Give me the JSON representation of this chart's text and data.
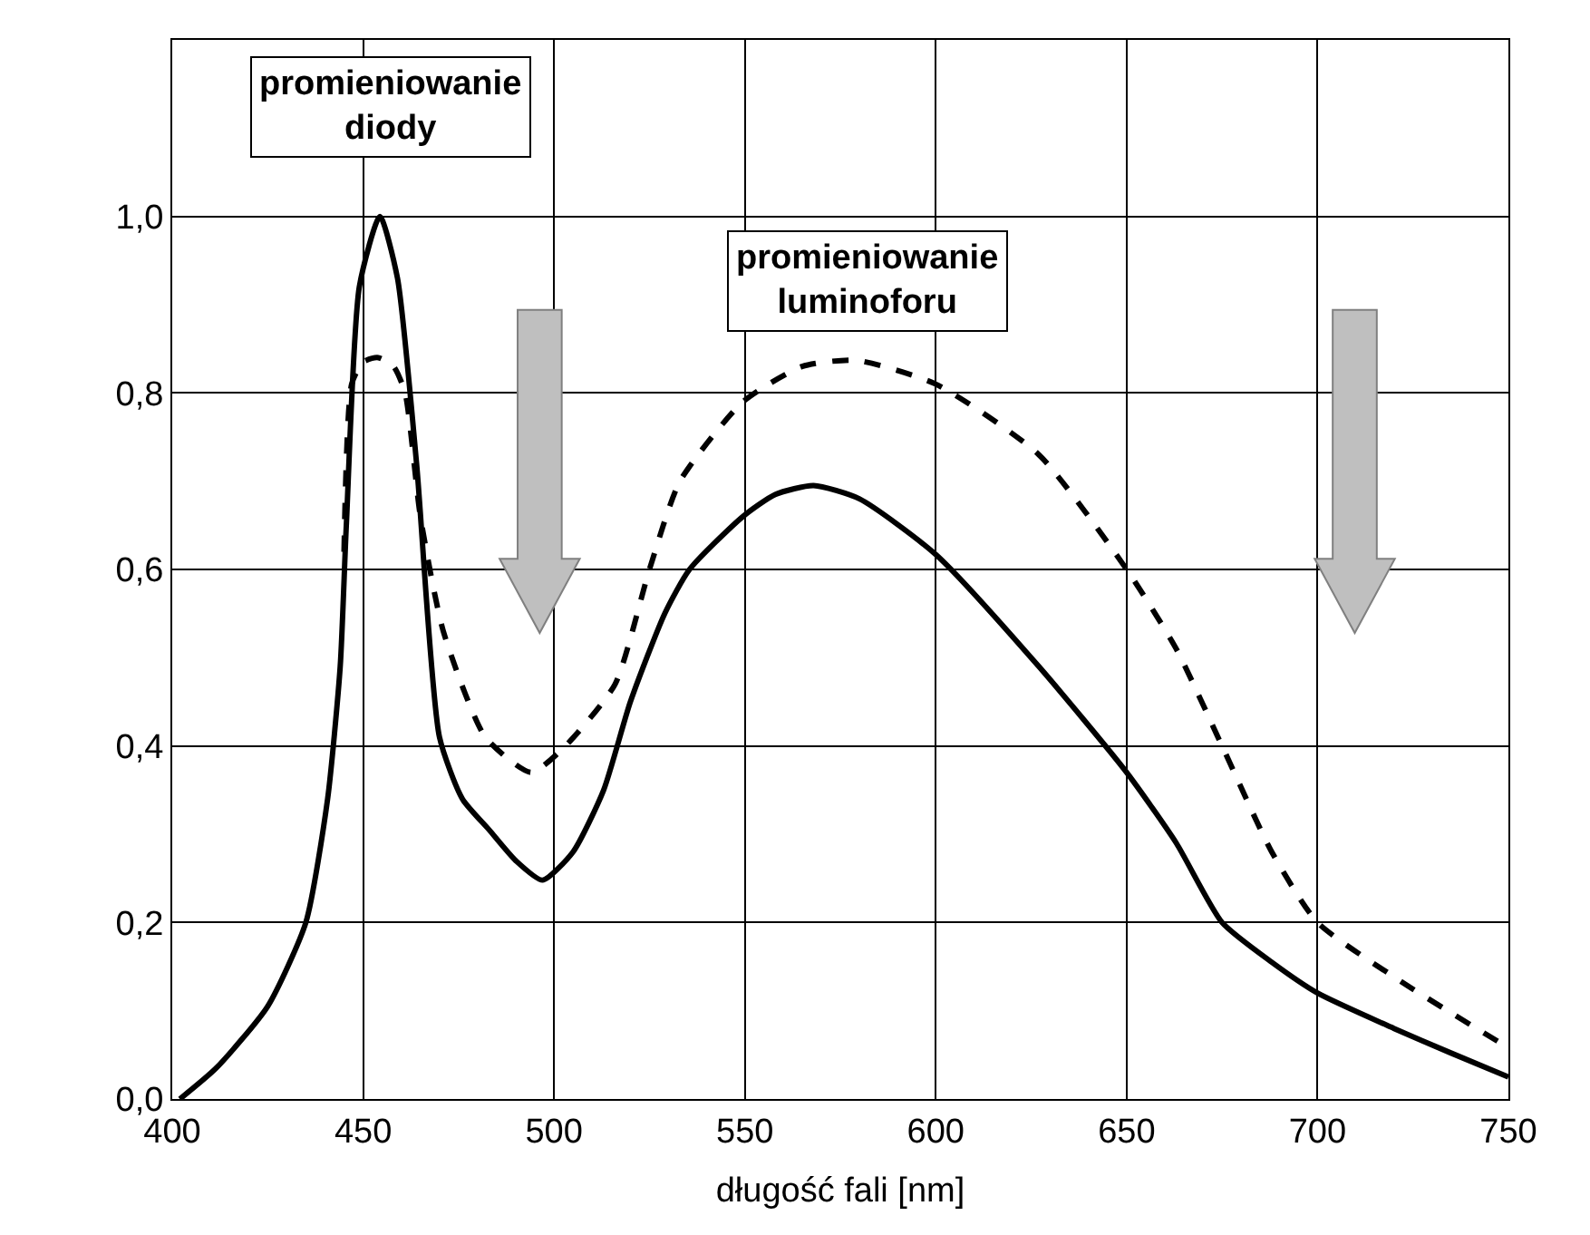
{
  "chart_data": {
    "type": "line",
    "xlabel": "długość fali [nm]",
    "xlim": [
      400,
      750
    ],
    "xticks": [
      400,
      450,
      500,
      550,
      600,
      650,
      700,
      750
    ],
    "ylim": [
      0,
      1.2
    ],
    "yticks": [
      {
        "value": 0,
        "label": "0,0"
      },
      {
        "value": 0.2,
        "label": "0,2"
      },
      {
        "value": 0.4,
        "label": "0,4"
      },
      {
        "value": 0.6,
        "label": "0,6"
      },
      {
        "value": 0.8,
        "label": "0,8"
      },
      {
        "value": 1.0,
        "label": "1,0"
      },
      {
        "value": 1.2,
        "label": null
      }
    ],
    "grid": true,
    "marker": "none",
    "annotations": [
      "promieniowanie\ndiody",
      "promieniowanie\nluminoforu"
    ],
    "series": [
      {
        "color": "#000000",
        "line_style": "solid",
        "x": [
          402,
          411.5,
          425,
          435,
          440.7,
          444,
          445.6,
          449,
          454.4,
          459,
          464,
          470,
          476,
          483,
          490,
          497,
          505,
          513,
          520,
          529,
          535.5,
          549.5,
          558,
          568,
          580,
          600,
          627,
          650,
          663,
          675,
          688,
          700,
          720,
          735,
          750
        ],
        "values": [
          0,
          0.035,
          0.105,
          0.2,
          0.34,
          0.49,
          0.65,
          0.92,
          1.0,
          0.93,
          0.72,
          0.41,
          0.34,
          0.305,
          0.27,
          0.248,
          0.28,
          0.35,
          0.45,
          0.55,
          0.6,
          0.66,
          0.685,
          0.695,
          0.68,
          0.617,
          0.49,
          0.37,
          0.29,
          0.2,
          0.155,
          0.12,
          0.08,
          0.052,
          0.025
        ]
      },
      {
        "color": "#000000",
        "line_style": "dashed",
        "x": [
          445,
          447,
          450,
          454,
          458,
          461,
          465,
          471,
          482,
          494,
          503,
          516,
          525,
          533,
          549.5,
          565,
          579,
          600,
          627,
          650,
          663,
          675,
          688,
          700,
          723,
          750
        ],
        "values": [
          0.62,
          0.81,
          0.835,
          0.84,
          0.83,
          0.8,
          0.66,
          0.53,
          0.41,
          0.37,
          0.4,
          0.47,
          0.6,
          0.7,
          0.79,
          0.83,
          0.837,
          0.81,
          0.73,
          0.6,
          0.51,
          0.4,
          0.28,
          0.2,
          0.13,
          0.058
        ]
      }
    ]
  }
}
